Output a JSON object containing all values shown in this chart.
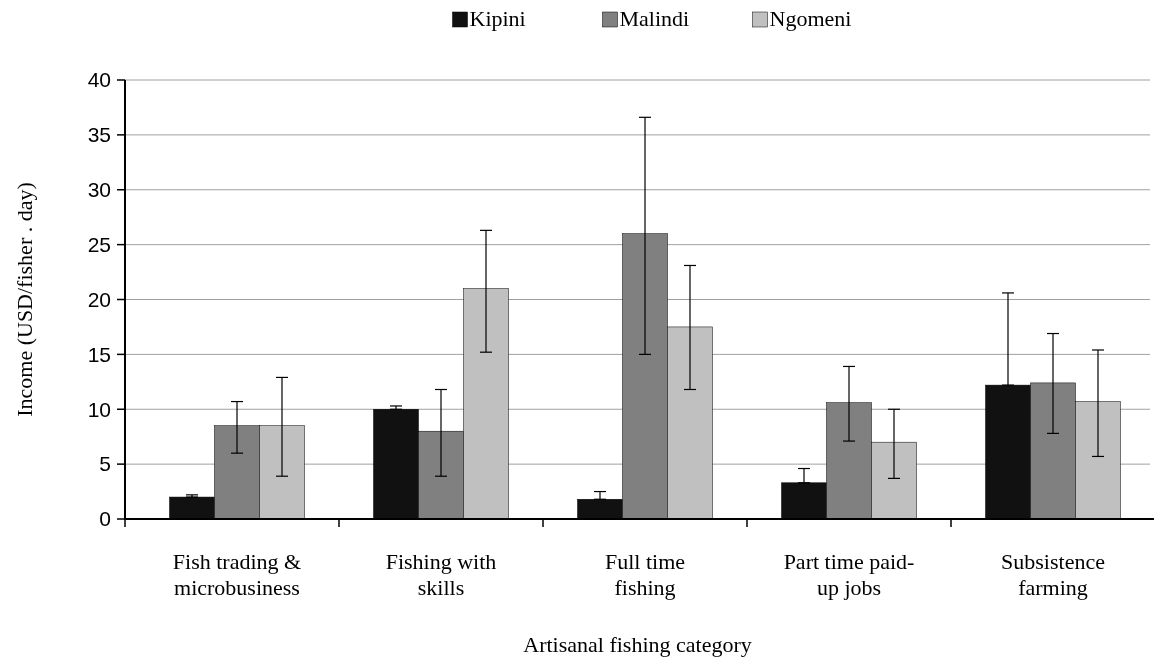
{
  "chart_data": {
    "type": "bar",
    "xlabel": "Artisanal fishing category",
    "ylabel": "Income (USD/fisher . day)",
    "categories": [
      "Fish trading & microbusiness",
      "Fishing with skills",
      "Full time fishing",
      "Part time paid-up jobs",
      "Subsistence farming"
    ],
    "series": [
      {
        "name": "Kipini",
        "color": "#111111",
        "values": [
          2.0,
          10.0,
          1.8,
          3.3,
          12.2
        ],
        "errors": [
          [
            2.0,
            2.2
          ],
          [
            10.0,
            10.3
          ],
          [
            1.8,
            2.5
          ],
          [
            3.3,
            4.6
          ],
          [
            12.2,
            20.6
          ]
        ]
      },
      {
        "name": "Malindi",
        "color": "#808080",
        "values": [
          8.5,
          8.0,
          26.0,
          10.6,
          12.4
        ],
        "errors": [
          [
            6.0,
            10.7
          ],
          [
            3.9,
            11.8
          ],
          [
            15.0,
            36.6
          ],
          [
            7.1,
            13.9
          ],
          [
            7.8,
            16.9
          ]
        ]
      },
      {
        "name": "Ngomeni",
        "color": "#c0c0c0",
        "values": [
          8.5,
          21.0,
          17.5,
          7.0,
          10.7
        ],
        "errors": [
          [
            3.9,
            12.9
          ],
          [
            15.2,
            26.3
          ],
          [
            11.8,
            23.1
          ],
          [
            3.7,
            10.0
          ],
          [
            5.7,
            15.4
          ]
        ]
      }
    ],
    "ylim": [
      0,
      40
    ],
    "yticks": [
      0,
      5,
      10,
      15,
      20,
      25,
      30,
      35,
      40
    ],
    "grid": "y",
    "legend": "top"
  }
}
